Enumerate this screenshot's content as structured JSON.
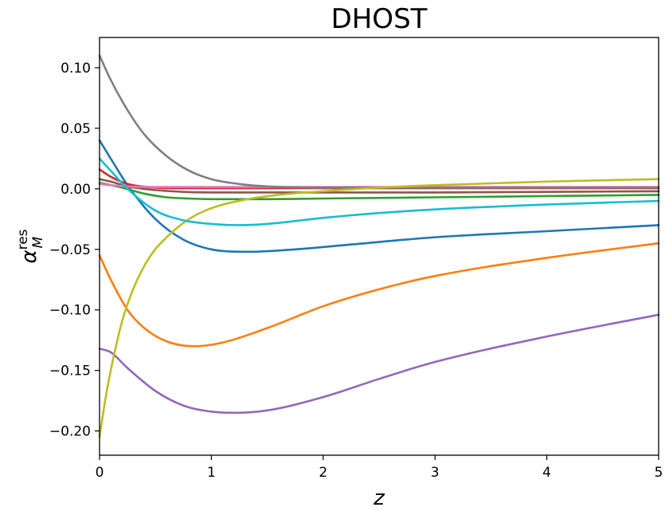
{
  "chart_data": {
    "type": "line",
    "title": "DHOST",
    "xlabel": "z",
    "ylabel": {
      "base": "α",
      "sub": "M",
      "sup": "res"
    },
    "xlim": [
      0,
      5
    ],
    "ylim": [
      -0.22,
      0.125
    ],
    "xticks": [
      0,
      1,
      2,
      3,
      4,
      5
    ],
    "xtick_labels": [
      "0",
      "1",
      "2",
      "3",
      "4",
      "5"
    ],
    "yticks": [
      -0.2,
      -0.15,
      -0.1,
      -0.05,
      0.0,
      0.05,
      0.1
    ],
    "ytick_labels": [
      "−0.20",
      "−0.15",
      "−0.10",
      "−0.05",
      "0.00",
      "0.05",
      "0.10"
    ],
    "grid": false,
    "legend": "none",
    "series": [
      {
        "color": "#1f77b4",
        "x": [
          0,
          0.1,
          0.25,
          0.5,
          0.75,
          1.0,
          1.35,
          1.75,
          2.25,
          3.0,
          4.0,
          5.0
        ],
        "y": [
          0.04,
          0.025,
          0.003,
          -0.025,
          -0.042,
          -0.05,
          -0.052,
          -0.05,
          -0.046,
          -0.04,
          -0.035,
          -0.03
        ]
      },
      {
        "color": "#ff7f0e",
        "x": [
          0,
          0.1,
          0.25,
          0.4,
          0.6,
          0.85,
          1.1,
          1.5,
          2.0,
          2.5,
          3.0,
          4.0,
          5.0
        ],
        "y": [
          -0.055,
          -0.075,
          -0.1,
          -0.115,
          -0.126,
          -0.13,
          -0.127,
          -0.115,
          -0.097,
          -0.083,
          -0.072,
          -0.057,
          -0.045
        ]
      },
      {
        "color": "#2ca02c",
        "x": [
          0,
          0.2,
          0.4,
          0.6,
          0.8,
          1.0,
          1.5,
          2.0,
          3.0,
          4.0,
          5.0
        ],
        "y": [
          0.005,
          0.001,
          -0.004,
          -0.007,
          -0.008,
          -0.0085,
          -0.0085,
          -0.008,
          -0.007,
          -0.006,
          -0.005
        ]
      },
      {
        "color": "#d62728",
        "x": [
          0,
          0.1,
          0.25,
          0.5,
          0.75,
          1.0,
          2.0,
          3.0,
          4.0,
          5.0
        ],
        "y": [
          0.016,
          0.01,
          0.004,
          0.001,
          0.0005,
          0.0005,
          0.0005,
          0.0005,
          0.0005,
          0.0005
        ]
      },
      {
        "color": "#9467bd",
        "x": [
          0,
          0.1,
          0.25,
          0.5,
          0.75,
          1.0,
          1.2,
          1.5,
          2.0,
          2.5,
          3.0,
          4.0,
          5.0
        ],
        "y": [
          -0.132,
          -0.135,
          -0.148,
          -0.167,
          -0.179,
          -0.184,
          -0.185,
          -0.183,
          -0.172,
          -0.157,
          -0.143,
          -0.122,
          -0.104
        ]
      },
      {
        "color": "#8c564b",
        "x": [
          0,
          0.1,
          0.25,
          0.5,
          0.75,
          1.0,
          2.0,
          3.0,
          4.0,
          5.0
        ],
        "y": [
          0.008,
          0.006,
          0.002,
          -0.001,
          -0.0025,
          -0.003,
          -0.003,
          -0.003,
          -0.0025,
          -0.002
        ]
      },
      {
        "color": "#e377c2",
        "x": [
          0,
          0.1,
          0.25,
          0.5,
          0.75,
          1.0,
          2.0,
          3.0,
          4.0,
          5.0
        ],
        "y": [
          0.004,
          0.003,
          0.002,
          0.0015,
          0.0015,
          0.0015,
          0.0015,
          0.0015,
          0.0015,
          0.0015
        ]
      },
      {
        "color": "#7f7f7f",
        "x": [
          0,
          0.1,
          0.25,
          0.4,
          0.6,
          0.8,
          1.0,
          1.25,
          1.5,
          2.0,
          3.0,
          4.0,
          5.0
        ],
        "y": [
          0.11,
          0.09,
          0.065,
          0.045,
          0.027,
          0.015,
          0.008,
          0.004,
          0.002,
          0.001,
          0.001,
          0.001,
          0.001
        ]
      },
      {
        "color": "#bcbd22",
        "x": [
          0,
          0.05,
          0.1,
          0.2,
          0.3,
          0.45,
          0.6,
          0.8,
          1.0,
          1.3,
          1.6,
          2.0,
          2.5,
          3.0,
          4.0,
          5.0
        ],
        "y": [
          -0.205,
          -0.175,
          -0.15,
          -0.11,
          -0.083,
          -0.056,
          -0.04,
          -0.025,
          -0.016,
          -0.009,
          -0.005,
          -0.002,
          0.001,
          0.003,
          0.006,
          0.008
        ]
      },
      {
        "color": "#17becf",
        "x": [
          0,
          0.1,
          0.25,
          0.5,
          0.75,
          1.0,
          1.25,
          1.5,
          2.0,
          2.5,
          3.0,
          4.0,
          5.0
        ],
        "y": [
          0.025,
          0.015,
          0.0,
          -0.018,
          -0.026,
          -0.029,
          -0.03,
          -0.029,
          -0.024,
          -0.02,
          -0.017,
          -0.013,
          -0.01
        ]
      }
    ]
  }
}
